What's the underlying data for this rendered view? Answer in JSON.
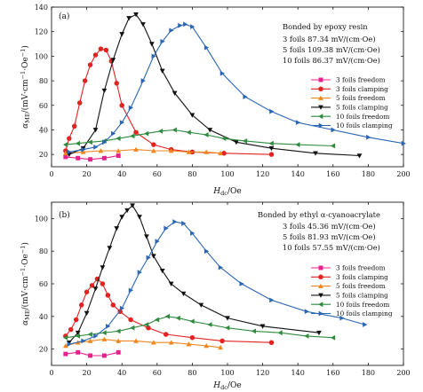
{
  "chart_data": [
    {
      "type": "line",
      "panel_label": "(a)",
      "xlabel": "H_dc/Oe",
      "ylabel": "α_ME/(mV·cm⁻¹·Oe⁻¹)",
      "xlim": [
        0,
        200
      ],
      "ylim": [
        10,
        140
      ],
      "xticks": [
        0,
        20,
        40,
        60,
        80,
        100,
        120,
        140,
        160,
        180,
        200
      ],
      "yticks": [
        20,
        40,
        60,
        80,
        100,
        120,
        140
      ],
      "annotation": {
        "title": "Bonded by epoxy resin",
        "lines": [
          "3 foils 87.34 mV/(cm·Oe)",
          "5 foils 109.38 mV/(cm·Oe)",
          "10 foils  86.37 mV/(cm·Oe)"
        ]
      },
      "legend_position": "right",
      "series": [
        {
          "name": "3 foils freedom",
          "color": "#e8208c",
          "marker": "square",
          "x": [
            8,
            15,
            22,
            30,
            38
          ],
          "y": [
            18,
            17,
            16,
            17,
            19
          ]
        },
        {
          "name": "3 foils clamping",
          "color": "#e32222",
          "marker": "circle",
          "x": [
            8,
            10,
            13,
            16,
            19,
            22,
            25,
            28,
            31,
            34,
            37,
            40,
            48,
            58,
            68,
            80,
            98,
            125
          ],
          "y": [
            23,
            33,
            43,
            62,
            80,
            93,
            101,
            106,
            105,
            96,
            78,
            60,
            38,
            28,
            24,
            22,
            21,
            20
          ]
        },
        {
          "name": "5 foils freedom",
          "color": "#f0861e",
          "marker": "triangle-up",
          "x": [
            8,
            18,
            28,
            38,
            48,
            58,
            68,
            78,
            88,
            96
          ],
          "y": [
            21,
            22,
            23,
            23,
            24,
            23,
            23,
            22,
            22,
            21
          ]
        },
        {
          "name": "5 foils clamping",
          "color": "#111111",
          "marker": "triangle-down",
          "x": [
            10,
            18,
            25,
            30,
            35,
            40,
            44,
            48,
            52,
            57,
            63,
            70,
            80,
            90,
            105,
            125,
            150,
            175
          ],
          "y": [
            20,
            25,
            40,
            72,
            97,
            118,
            131,
            134,
            126,
            110,
            88,
            70,
            52,
            40,
            30,
            25,
            21,
            19
          ]
        },
        {
          "name": "10 foils freedom",
          "color": "#2e8b3e",
          "marker": "triangle-left",
          "x": [
            8,
            15,
            22,
            30,
            38,
            46,
            54,
            62,
            70,
            78,
            88,
            98,
            110,
            125,
            140,
            160
          ],
          "y": [
            28,
            29,
            30,
            31,
            33,
            35,
            37,
            39,
            40,
            38,
            36,
            33,
            31,
            29,
            28,
            27
          ]
        },
        {
          "name": "10 foils clamping",
          "color": "#2b66b4",
          "marker": "triangle-right",
          "x": [
            10,
            18,
            25,
            30,
            35,
            40,
            45,
            52,
            58,
            63,
            68,
            73,
            76,
            80,
            88,
            97,
            110,
            125,
            140,
            160,
            180,
            200
          ],
          "y": [
            22,
            24,
            26,
            30,
            37,
            46,
            58,
            80,
            100,
            112,
            121,
            125,
            126,
            124,
            107,
            86,
            67,
            55,
            46,
            40,
            34,
            29
          ]
        }
      ]
    },
    {
      "type": "line",
      "panel_label": "(b)",
      "xlabel": "H_dc/Oe",
      "ylabel": "α_ME/(mV·cm⁻¹·Oe⁻¹)",
      "xlim": [
        0,
        200
      ],
      "ylim": [
        10,
        110
      ],
      "xticks": [
        0,
        20,
        40,
        60,
        80,
        100,
        120,
        140,
        160,
        180,
        200
      ],
      "yticks": [
        20,
        40,
        60,
        80,
        100
      ],
      "annotation": {
        "title": "Bonded by ethyl α-cyanoacrylate",
        "lines": [
          "3 foils 45.36 mV/(cm·Oe)",
          "5 foils 81.93 mV/(cm·Oe)",
          "10 foils 57.55 mV/(cm·Oe)"
        ]
      },
      "legend_position": "right",
      "series": [
        {
          "name": "3 foils freedom",
          "color": "#e8208c",
          "marker": "square",
          "x": [
            8,
            15,
            22,
            30,
            38
          ],
          "y": [
            17,
            18,
            16,
            16,
            18
          ]
        },
        {
          "name": "3 foils clamping",
          "color": "#e32222",
          "marker": "circle",
          "x": [
            8,
            11,
            14,
            17,
            20,
            23,
            26,
            29,
            32,
            35,
            39,
            45,
            55,
            65,
            80,
            97,
            125
          ],
          "y": [
            28,
            32,
            38,
            47,
            55,
            59,
            63,
            60,
            53,
            47,
            43,
            38,
            33,
            29,
            27,
            25,
            24
          ]
        },
        {
          "name": "5 foils freedom",
          "color": "#f0861e",
          "marker": "triangle-up",
          "x": [
            8,
            15,
            22,
            30,
            38,
            48,
            58,
            68,
            78,
            88,
            96
          ],
          "y": [
            22,
            24,
            25,
            26,
            25,
            25,
            24,
            24,
            23,
            22,
            21
          ]
        },
        {
          "name": "5 foils clamping",
          "color": "#111111",
          "marker": "triangle-down",
          "x": [
            10,
            15,
            20,
            25,
            29,
            33,
            37,
            40,
            43,
            46,
            50,
            54,
            58,
            63,
            68,
            75,
            85,
            100,
            120,
            152
          ],
          "y": [
            24,
            30,
            42,
            57,
            70,
            82,
            94,
            101,
            105,
            108,
            101,
            89,
            77,
            68,
            60,
            54,
            47,
            39,
            34,
            30
          ]
        },
        {
          "name": "10 foils freedom",
          "color": "#2e8b3e",
          "marker": "triangle-left",
          "x": [
            8,
            15,
            22,
            30,
            38,
            46,
            54,
            60,
            66,
            72,
            80,
            90,
            100,
            115,
            130,
            145,
            160
          ],
          "y": [
            27,
            28,
            29,
            30,
            31,
            33,
            35,
            38,
            40,
            39,
            37,
            35,
            33,
            31,
            30,
            28,
            27
          ]
        },
        {
          "name": "10 foils clamping",
          "color": "#2b66b4",
          "marker": "triangle-right",
          "x": [
            10,
            18,
            25,
            32,
            40,
            45,
            50,
            55,
            60,
            65,
            70,
            75,
            80,
            88,
            96,
            108,
            125,
            145,
            165,
            178
          ],
          "y": [
            23,
            25,
            28,
            34,
            45,
            56,
            67,
            76,
            86,
            94,
            98,
            97,
            91,
            80,
            70,
            60,
            50,
            43,
            39,
            35
          ]
        }
      ]
    }
  ]
}
